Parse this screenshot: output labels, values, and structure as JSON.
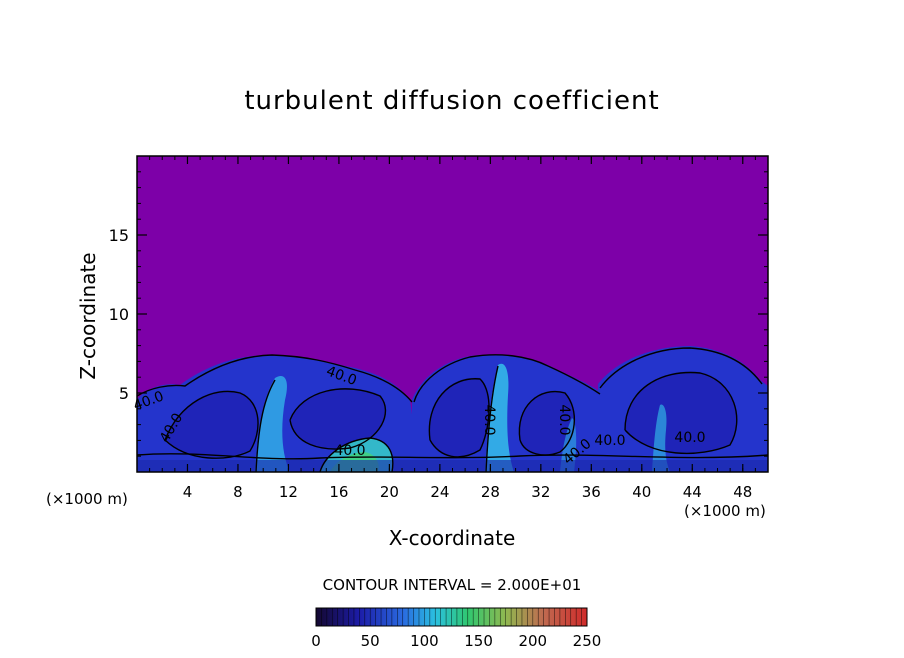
{
  "chart_data": {
    "type": "heatmap",
    "title": "turbulent diffusion coefficient",
    "xlabel": "X-coordinate",
    "ylabel": "Z-coordinate",
    "x_unit_left": "(×1000 m)",
    "x_unit_right": "(×1000 m)",
    "xlim": [
      0,
      50
    ],
    "ylim": [
      0,
      20
    ],
    "x_ticks": [
      4,
      8,
      12,
      16,
      20,
      24,
      28,
      32,
      36,
      40,
      44,
      48
    ],
    "y_ticks": [
      5,
      10,
      15
    ],
    "contour_interval_label": "CONTOUR INTERVAL = 2.000E+01",
    "contour_labels": [
      "40.0",
      "40.0",
      "40.0",
      "40.0",
      "40.0",
      "40.0",
      "40.0",
      "40.0",
      "40.0"
    ],
    "colorbar": {
      "min": 0,
      "max": 250,
      "tick_labels": [
        "0",
        "50",
        "100",
        "150",
        "200",
        "250"
      ],
      "colors": [
        "#1a0a4a",
        "#1e2ad8",
        "#2aa0e6",
        "#2ad07a",
        "#a0d040",
        "#d06a40",
        "#d02a2a"
      ]
    },
    "background_color": "#7d00a8",
    "field_description_colors": {
      "low": "#7d00a8",
      "mid": "#2a3adc",
      "high": "#40e0f0",
      "peak": "#40d080"
    }
  }
}
